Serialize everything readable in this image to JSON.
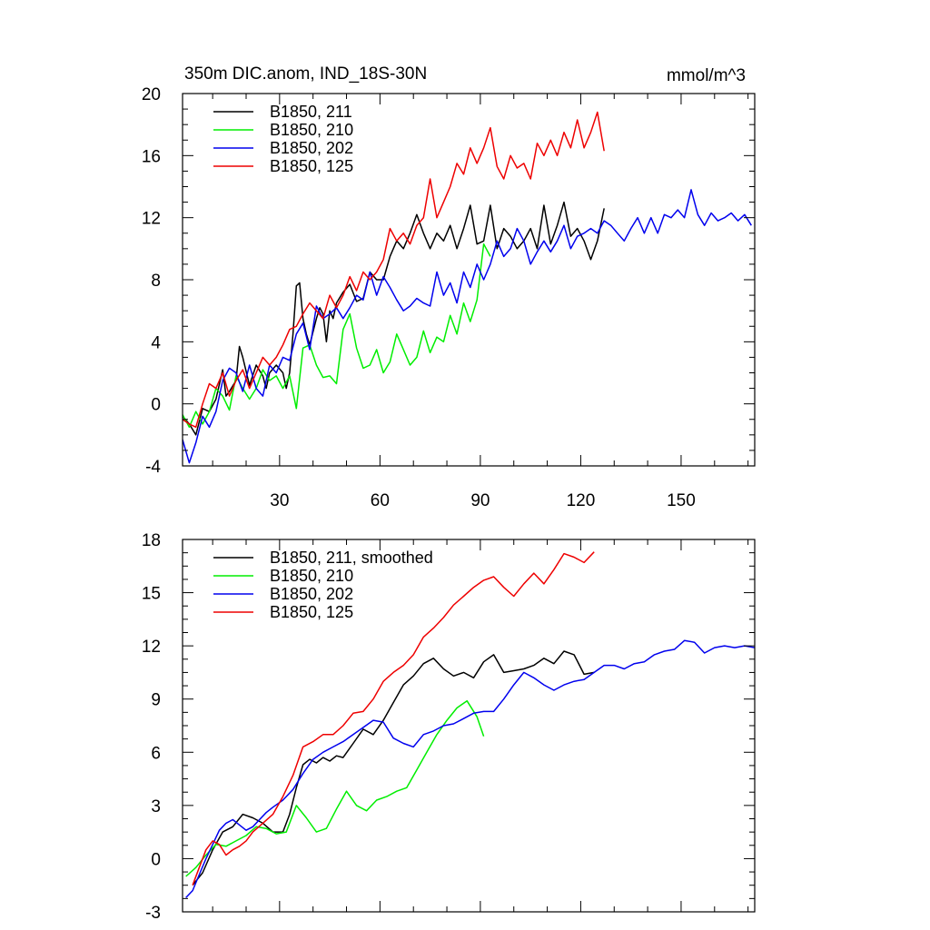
{
  "chart_data": [
    {
      "type": "line",
      "title": "350m DIC.anom, IND_18S-30N",
      "units": "mmol/m^3",
      "xlim": [
        1,
        172
      ],
      "ylim": [
        -4,
        20
      ],
      "x_ticks": [
        30,
        60,
        90,
        120,
        150
      ],
      "x_tick_labels": [
        "30",
        "60",
        "90",
        "120",
        "150"
      ],
      "y_ticks": [
        -4,
        0,
        4,
        8,
        12,
        16,
        20
      ],
      "y_tick_labels": [
        "-4",
        "0",
        "4",
        "8",
        "12",
        "16",
        "20"
      ],
      "legend_position": "top-left",
      "series": [
        {
          "name": "B1850, 211",
          "color": "#000000",
          "x": [
            1,
            3,
            5,
            7,
            9,
            11,
            13,
            14,
            15,
            17,
            18,
            19,
            21,
            23,
            25,
            26,
            27,
            29,
            31,
            32,
            33,
            34,
            35,
            36,
            37,
            38,
            39,
            41,
            42,
            43,
            44,
            45,
            46,
            47,
            49,
            51,
            53,
            55,
            57,
            59,
            61,
            63,
            64,
            65,
            67,
            69,
            71,
            73,
            75,
            77,
            79,
            81,
            83,
            85,
            87,
            89,
            91,
            93,
            95,
            97,
            99,
            101,
            103,
            105,
            107,
            109,
            111,
            113,
            115,
            117,
            119,
            121,
            123,
            125,
            127
          ],
          "y": [
            -0.8,
            -1.3,
            -2.0,
            -0.3,
            -0.5,
            0.3,
            2.2,
            0.5,
            0.8,
            1.5,
            3.7,
            3.0,
            1.2,
            2.5,
            1.8,
            1.0,
            2.0,
            2.5,
            2.0,
            1.0,
            2.0,
            4.5,
            7.6,
            7.8,
            5.5,
            4.5,
            3.8,
            5.5,
            6.2,
            5.8,
            4.0,
            6.0,
            5.5,
            6.5,
            7.2,
            7.7,
            6.6,
            6.8,
            8.5,
            8.0,
            8.0,
            9.5,
            10.0,
            10.5,
            10.0,
            11.0,
            12.2,
            11.0,
            10.0,
            11.0,
            10.5,
            11.5,
            10.0,
            11.3,
            12.8,
            10.3,
            10.5,
            12.8,
            10.0,
            11.3,
            10.8,
            10.0,
            10.5,
            11.3,
            10.0,
            12.8,
            10.3,
            11.5,
            13.0,
            10.8,
            11.3,
            10.5,
            9.3,
            10.5,
            12.6
          ]
        },
        {
          "name": "B1850, 210",
          "color": "#00ee00",
          "x": [
            1,
            3,
            5,
            7,
            9,
            11,
            13,
            15,
            17,
            19,
            21,
            23,
            25,
            27,
            29,
            31,
            33,
            35,
            37,
            39,
            41,
            43,
            45,
            47,
            49,
            51,
            53,
            55,
            57,
            59,
            61,
            63,
            65,
            67,
            69,
            71,
            73,
            75,
            77,
            79,
            81,
            83,
            85,
            87,
            89,
            91,
            93
          ],
          "y": [
            -0.7,
            -1.5,
            -0.5,
            -1.3,
            -0.5,
            1.0,
            0.5,
            -0.4,
            1.8,
            1.0,
            0.3,
            1.0,
            2.2,
            1.5,
            1.8,
            1.0,
            1.8,
            -0.3,
            3.6,
            3.8,
            2.5,
            1.7,
            1.8,
            1.3,
            4.8,
            5.8,
            3.6,
            2.3,
            2.5,
            3.5,
            2.0,
            2.7,
            4.5,
            3.5,
            2.5,
            3.0,
            4.7,
            3.3,
            4.3,
            4.0,
            5.7,
            4.5,
            6.5,
            5.3,
            6.7,
            10.3,
            9.5
          ]
        },
        {
          "name": "B1850, 202",
          "color": "#0000ee",
          "x": [
            1,
            3,
            5,
            7,
            9,
            11,
            13,
            15,
            17,
            19,
            21,
            23,
            25,
            27,
            29,
            31,
            33,
            35,
            37,
            39,
            41,
            43,
            45,
            47,
            49,
            51,
            53,
            55,
            57,
            59,
            61,
            63,
            65,
            67,
            69,
            71,
            73,
            75,
            77,
            79,
            81,
            83,
            85,
            87,
            89,
            91,
            93,
            95,
            97,
            99,
            101,
            103,
            105,
            107,
            109,
            111,
            113,
            115,
            117,
            119,
            121,
            123,
            125,
            127,
            129,
            131,
            133,
            135,
            137,
            139,
            141,
            143,
            145,
            147,
            149,
            151,
            153,
            155,
            157,
            159,
            161,
            163,
            165,
            167,
            169,
            171
          ],
          "y": [
            -2.3,
            -3.8,
            -2.5,
            -0.8,
            -1.5,
            -0.5,
            1.5,
            2.3,
            2.0,
            0.8,
            2.5,
            1.0,
            0.5,
            2.5,
            2.0,
            3.0,
            2.8,
            4.5,
            5.2,
            3.5,
            6.3,
            5.5,
            5.8,
            6.2,
            5.5,
            6.2,
            7.0,
            6.7,
            8.5,
            7.0,
            8.2,
            7.5,
            6.7,
            6.0,
            6.3,
            6.8,
            6.5,
            6.3,
            8.5,
            7.0,
            7.8,
            6.5,
            8.5,
            7.5,
            9.0,
            8.0,
            9.0,
            10.5,
            9.5,
            10.0,
            11.3,
            10.5,
            9.0,
            9.8,
            10.5,
            9.8,
            10.5,
            11.5,
            10.0,
            10.8,
            11.0,
            11.3,
            11.0,
            11.8,
            11.5,
            11.0,
            10.5,
            11.3,
            12.0,
            11.0,
            12.0,
            11.0,
            12.2,
            12.0,
            12.5,
            12.0,
            13.8,
            12.2,
            11.5,
            12.3,
            11.8,
            12.0,
            12.3,
            11.8,
            12.2,
            11.5
          ]
        },
        {
          "name": "B1850, 125",
          "color": "#ee0000",
          "x": [
            1,
            3,
            5,
            7,
            9,
            11,
            13,
            15,
            17,
            19,
            21,
            23,
            25,
            27,
            29,
            31,
            33,
            35,
            37,
            39,
            41,
            43,
            45,
            47,
            49,
            51,
            53,
            55,
            57,
            59,
            61,
            63,
            65,
            67,
            69,
            71,
            73,
            75,
            77,
            79,
            81,
            83,
            85,
            87,
            89,
            91,
            93,
            95,
            97,
            99,
            101,
            103,
            105,
            107,
            109,
            111,
            113,
            115,
            117,
            119,
            121,
            123,
            125,
            127
          ],
          "y": [
            -1.0,
            -1.3,
            -1.5,
            0.0,
            1.3,
            1.0,
            2.0,
            0.5,
            1.5,
            2.2,
            1.0,
            2.0,
            3.0,
            2.5,
            3.0,
            3.8,
            4.8,
            5.0,
            5.8,
            6.5,
            6.0,
            5.5,
            7.0,
            6.2,
            7.0,
            8.2,
            7.3,
            8.5,
            8.0,
            8.5,
            9.3,
            11.3,
            10.5,
            11.0,
            10.3,
            11.5,
            12.0,
            14.5,
            12.0,
            13.0,
            14.0,
            15.5,
            14.8,
            16.5,
            15.5,
            16.5,
            17.8,
            15.3,
            14.5,
            16.0,
            15.2,
            15.5,
            14.5,
            16.8,
            16.0,
            17.0,
            16.0,
            17.5,
            16.5,
            18.3,
            16.5,
            17.5,
            18.8,
            16.3
          ]
        }
      ]
    },
    {
      "type": "line",
      "title": "",
      "xlim": [
        1,
        172
      ],
      "ylim": [
        -3,
        18
      ],
      "x_ticks": [
        30,
        60,
        90,
        120,
        150
      ],
      "x_tick_labels": [],
      "y_ticks": [
        -3,
        0,
        3,
        6,
        9,
        12,
        15,
        18
      ],
      "y_tick_labels": [
        "-3",
        "0",
        "3",
        "6",
        "9",
        "12",
        "15",
        "18"
      ],
      "legend_position": "top-left",
      "series": [
        {
          "name": "B1850, 211, smoothed",
          "color": "#000000",
          "x": [
            4,
            7,
            10,
            13,
            16,
            19,
            22,
            25,
            28,
            31,
            33,
            35,
            37,
            39,
            41,
            43,
            45,
            47,
            49,
            52,
            55,
            58,
            61,
            64,
            67,
            70,
            73,
            76,
            79,
            82,
            85,
            88,
            91,
            94,
            97,
            100,
            103,
            106,
            109,
            112,
            115,
            118,
            121,
            124
          ],
          "y": [
            -1.5,
            -0.8,
            0.5,
            1.5,
            1.8,
            2.5,
            2.3,
            2.0,
            1.5,
            1.5,
            2.5,
            4.0,
            5.3,
            5.6,
            5.4,
            5.7,
            5.5,
            5.8,
            5.7,
            6.5,
            7.3,
            7.0,
            7.8,
            8.8,
            9.8,
            10.3,
            11.0,
            11.3,
            10.7,
            10.3,
            10.5,
            10.2,
            11.1,
            11.5,
            10.5,
            10.6,
            10.7,
            10.9,
            11.3,
            11.0,
            11.7,
            11.5,
            10.4,
            10.5
          ]
        },
        {
          "name": "B1850, 210",
          "color": "#00ee00",
          "x": [
            2,
            5,
            8,
            11,
            14,
            17,
            20,
            23,
            26,
            29,
            32,
            35,
            38,
            41,
            44,
            47,
            50,
            53,
            56,
            59,
            62,
            65,
            68,
            71,
            74,
            77,
            80,
            83,
            86,
            89,
            91
          ],
          "y": [
            -1.0,
            -0.5,
            0.2,
            0.8,
            0.7,
            1.0,
            1.3,
            1.8,
            1.7,
            1.4,
            1.5,
            3.0,
            2.3,
            1.5,
            1.7,
            2.8,
            3.8,
            3.0,
            2.7,
            3.3,
            3.5,
            3.8,
            4.0,
            5.0,
            6.0,
            7.0,
            7.8,
            8.5,
            8.9,
            8.0,
            6.9
          ]
        },
        {
          "name": "B1850, 202",
          "color": "#0000ee",
          "x": [
            2,
            4,
            6,
            8,
            10,
            12,
            14,
            16,
            18,
            20,
            22,
            24,
            26,
            28,
            31,
            34,
            37,
            40,
            43,
            46,
            49,
            52,
            55,
            58,
            61,
            64,
            67,
            70,
            73,
            76,
            79,
            82,
            85,
            88,
            91,
            94,
            97,
            100,
            103,
            106,
            109,
            112,
            115,
            118,
            121,
            124,
            127,
            130,
            133,
            136,
            139,
            142,
            145,
            148,
            151,
            154,
            157,
            160,
            163,
            166,
            169,
            172
          ],
          "y": [
            -2.2,
            -1.8,
            -0.9,
            0.0,
            0.8,
            1.6,
            2.0,
            2.2,
            1.9,
            1.6,
            1.8,
            2.2,
            2.6,
            2.9,
            3.3,
            3.9,
            4.8,
            5.6,
            6.0,
            6.3,
            6.6,
            7.0,
            7.4,
            7.8,
            7.7,
            6.8,
            6.5,
            6.3,
            7.0,
            7.2,
            7.5,
            7.6,
            7.9,
            8.2,
            8.3,
            8.3,
            9.0,
            9.8,
            10.5,
            10.2,
            9.8,
            9.5,
            9.8,
            10.0,
            10.1,
            10.5,
            10.9,
            10.9,
            10.7,
            11.0,
            11.1,
            11.5,
            11.7,
            11.8,
            12.3,
            12.2,
            11.6,
            11.9,
            12.0,
            11.9,
            12.0,
            11.9
          ]
        },
        {
          "name": "B1850, 125",
          "color": "#ee0000",
          "x": [
            4,
            6,
            8,
            10,
            12,
            14,
            16,
            18,
            20,
            22,
            25,
            28,
            31,
            34,
            37,
            40,
            43,
            46,
            49,
            52,
            55,
            58,
            61,
            64,
            67,
            70,
            73,
            76,
            79,
            82,
            85,
            88,
            91,
            94,
            97,
            100,
            103,
            106,
            109,
            112,
            115,
            118,
            121,
            124
          ],
          "y": [
            -1.5,
            -0.5,
            0.5,
            1.0,
            0.8,
            0.2,
            0.5,
            0.7,
            1.0,
            1.5,
            2.0,
            2.5,
            3.5,
            4.7,
            6.3,
            6.6,
            7.0,
            7.0,
            7.5,
            8.2,
            8.3,
            9.0,
            10.0,
            10.5,
            10.9,
            11.5,
            12.5,
            13.0,
            13.6,
            14.3,
            14.8,
            15.3,
            15.7,
            15.9,
            15.3,
            14.8,
            15.5,
            16.1,
            15.5,
            16.3,
            17.2,
            17.0,
            16.7,
            17.3
          ]
        }
      ]
    }
  ]
}
